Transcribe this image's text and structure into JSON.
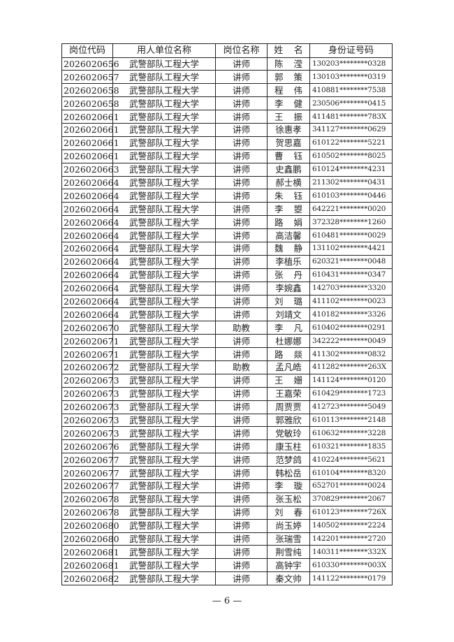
{
  "table": {
    "headers": [
      "岗位代码",
      "用人单位名称",
      "岗位名称",
      "姓名",
      "身份证号码"
    ],
    "rows": [
      [
        "2026020656",
        "武警部队工程大学",
        "讲师",
        "陈滢",
        "130203********0328"
      ],
      [
        "2026020657",
        "武警部队工程大学",
        "讲师",
        "郭策",
        "130103********0319"
      ],
      [
        "2026020658",
        "武警部队工程大学",
        "讲师",
        "程伟",
        "410881********7538"
      ],
      [
        "2026020658",
        "武警部队工程大学",
        "讲师",
        "李健",
        "230506********0415"
      ],
      [
        "2026020661",
        "武警部队工程大学",
        "讲师",
        "王振",
        "411481********783X"
      ],
      [
        "2026020661",
        "武警部队工程大学",
        "讲师",
        "徐惠孝",
        "341127********0629"
      ],
      [
        "2026020661",
        "武警部队工程大学",
        "讲师",
        "贺思嘉",
        "610122********5221"
      ],
      [
        "2026020661",
        "武警部队工程大学",
        "讲师",
        "曹钰",
        "610502********8025"
      ],
      [
        "2026020663",
        "武警部队工程大学",
        "讲师",
        "史鑫鹏",
        "610124********4231"
      ],
      [
        "2026020664",
        "武警部队工程大学",
        "讲师",
        "郝士横",
        "211302********0431"
      ],
      [
        "2026020664",
        "武警部队工程大学",
        "讲师",
        "朱钰",
        "610103********0446"
      ],
      [
        "2026020664",
        "武警部队工程大学",
        "讲师",
        "李曌",
        "642221********0020"
      ],
      [
        "2026020664",
        "武警部队工程大学",
        "讲师",
        "路娟",
        "372328********1260"
      ],
      [
        "2026020664",
        "武警部队工程大学",
        "讲师",
        "高洁馨",
        "610481********0029"
      ],
      [
        "2026020664",
        "武警部队工程大学",
        "讲师",
        "魏静",
        "131102********4421"
      ],
      [
        "2026020664",
        "武警部队工程大学",
        "讲师",
        "李植乐",
        "620321********0048"
      ],
      [
        "2026020664",
        "武警部队工程大学",
        "讲师",
        "张丹",
        "610431********0347"
      ],
      [
        "2026020664",
        "武警部队工程大学",
        "讲师",
        "李婉鑫",
        "142703********3320"
      ],
      [
        "2026020664",
        "武警部队工程大学",
        "讲师",
        "刘璐",
        "411102********0023"
      ],
      [
        "2026020664",
        "武警部队工程大学",
        "讲师",
        "刘靖文",
        "410182********3326"
      ],
      [
        "2026020670",
        "武警部队工程大学",
        "助教",
        "李凡",
        "610402********0291"
      ],
      [
        "2026020671",
        "武警部队工程大学",
        "讲师",
        "杜娜娜",
        "342222********0049"
      ],
      [
        "2026020671",
        "武警部队工程大学",
        "讲师",
        "路燚",
        "411302********0832"
      ],
      [
        "2026020672",
        "武警部队工程大学",
        "助教",
        "孟凡皓",
        "411282********263X"
      ],
      [
        "2026020673",
        "武警部队工程大学",
        "讲师",
        "王姗",
        "141124********0120"
      ],
      [
        "2026020673",
        "武警部队工程大学",
        "讲师",
        "王嘉荣",
        "610429********1723"
      ],
      [
        "2026020673",
        "武警部队工程大学",
        "讲师",
        "周贾贾",
        "412723********5049"
      ],
      [
        "2026020673",
        "武警部队工程大学",
        "讲师",
        "郭雅欣",
        "610113********2148"
      ],
      [
        "2026020673",
        "武警部队工程大学",
        "讲师",
        "党敏玲",
        "610632********3228"
      ],
      [
        "2026020676",
        "武警部队工程大学",
        "讲师",
        "康玉柱",
        "610321********1835"
      ],
      [
        "2026020677",
        "武警部队工程大学",
        "讲师",
        "范梦鸽",
        "410224********5621"
      ],
      [
        "2026020677",
        "武警部队工程大学",
        "讲师",
        "韩松岳",
        "610104********8320"
      ],
      [
        "2026020677",
        "武警部队工程大学",
        "讲师",
        "李璇",
        "652701********0024"
      ],
      [
        "2026020678",
        "武警部队工程大学",
        "讲师",
        "张玉松",
        "370829********2067"
      ],
      [
        "2026020678",
        "武警部队工程大学",
        "讲师",
        "刘春",
        "610123********726X"
      ],
      [
        "2026020680",
        "武警部队工程大学",
        "讲师",
        "尚玉婷",
        "140502********2224"
      ],
      [
        "2026020680",
        "武警部队工程大学",
        "讲师",
        "张瑞雪",
        "142201********2720"
      ],
      [
        "2026020681",
        "武警部队工程大学",
        "讲师",
        "荆雪纯",
        "140311********332X"
      ],
      [
        "2026020681",
        "武警部队工程大学",
        "讲师",
        "高钟宇",
        "610330********003X"
      ],
      [
        "2026020682",
        "武警部队工程大学",
        "讲师",
        "秦文帅",
        "141122********0179"
      ]
    ]
  },
  "footer": {
    "page_number": "— 6 —"
  }
}
